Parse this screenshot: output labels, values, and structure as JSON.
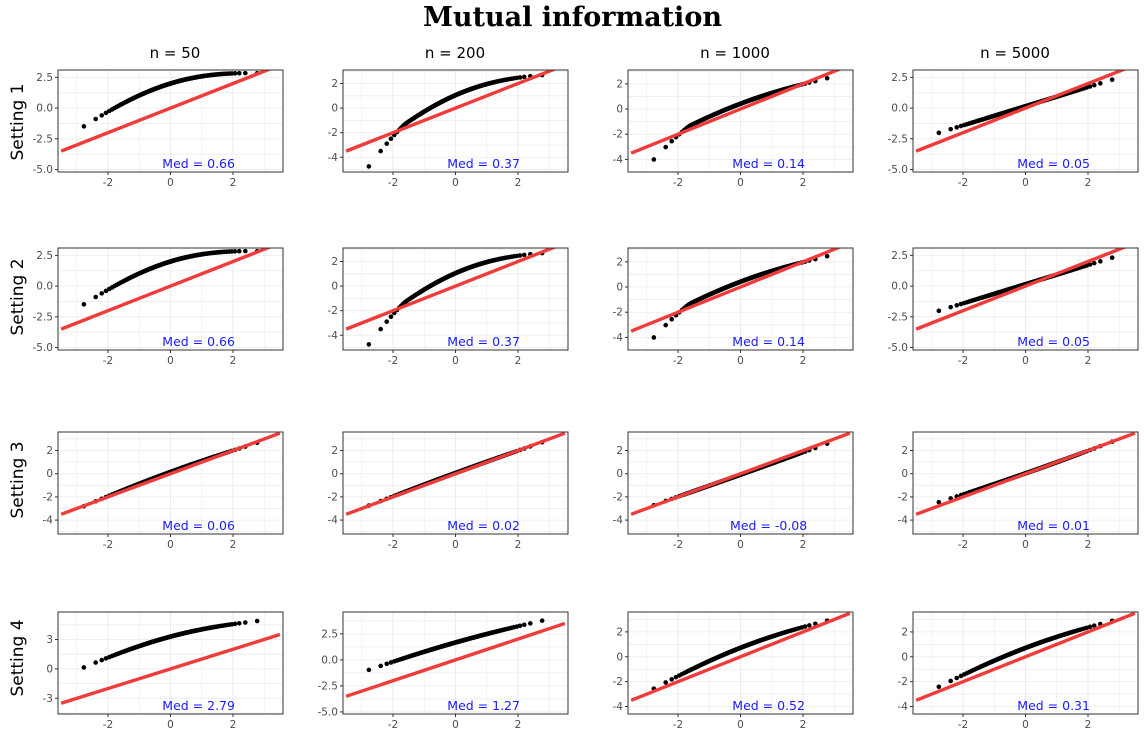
{
  "title": "Mutual information",
  "columns": [
    "n = 50",
    "n = 200",
    "n = 1000",
    "n = 5000"
  ],
  "rows": [
    "Setting 1",
    "Setting 2",
    "Setting 3",
    "Setting 4"
  ],
  "colors": {
    "points": "#000000",
    "reference_line": "#f03b3b",
    "annotation": "#1a1aff",
    "grid": "#ebebeb",
    "border": "#333333"
  },
  "chart_data": [
    {
      "type": "scatter",
      "row": 0,
      "col": 0,
      "annotation": "Med = 0.66",
      "xlim": [
        -3.6,
        3.6
      ],
      "ylim": [
        -5.2,
        3.1
      ],
      "xticks": [
        -2,
        0,
        2
      ],
      "yticks": [
        -5.0,
        -2.5,
        0.0,
        2.5
      ],
      "ytick_labels": [
        "-5.0",
        "-2.5",
        "0.0",
        "2.5"
      ],
      "line": [
        -3.5,
        3.5
      ],
      "qq_min": -2.5,
      "qq_max": 2.8,
      "qq_mid": 0.6,
      "qq_curve": 0.7
    },
    {
      "type": "scatter",
      "row": 0,
      "col": 1,
      "annotation": "Med = 0.37",
      "xlim": [
        -3.6,
        3.6
      ],
      "ylim": [
        -5.2,
        3.1
      ],
      "xticks": [
        -2,
        0,
        2
      ],
      "yticks": [
        -4,
        -2,
        0,
        2
      ],
      "ytick_labels": [
        "-4",
        "-2",
        "0",
        "2"
      ],
      "line": [
        -3.5,
        3.5
      ],
      "qq_min": -4.8,
      "qq_max": 2.8,
      "qq_mid": 0.35,
      "qq_curve": 0.35,
      "qq_dip": true
    },
    {
      "type": "scatter",
      "row": 0,
      "col": 2,
      "annotation": "Med = 0.14",
      "xlim": [
        -3.6,
        3.6
      ],
      "ylim": [
        -5.0,
        3.1
      ],
      "xticks": [
        -2,
        0,
        2
      ],
      "yticks": [
        -4,
        -2,
        0,
        2
      ],
      "ytick_labels": [
        "-4",
        "-2",
        "0",
        "2"
      ],
      "line": [
        -3.5,
        3.5
      ],
      "qq_min": -3.6,
      "qq_max": 2.8,
      "qq_mid": 0.12,
      "qq_curve": 0.15,
      "qq_dip": true
    },
    {
      "type": "scatter",
      "row": 0,
      "col": 3,
      "annotation": "Med = 0.05",
      "xlim": [
        -3.6,
        3.6
      ],
      "ylim": [
        -5.2,
        3.1
      ],
      "xticks": [
        -2,
        0,
        2
      ],
      "yticks": [
        -5.0,
        -2.5,
        0.0,
        2.5
      ],
      "ytick_labels": [
        "-5.0",
        "-2.5",
        "0.0",
        "2.5"
      ],
      "line": [
        -3.5,
        3.5
      ],
      "qq_min": -2.5,
      "qq_max": 2.8,
      "qq_mid": 0.05,
      "qq_curve": 0.05
    },
    {
      "type": "scatter",
      "row": 1,
      "col": 0,
      "annotation": "Med = 0.66",
      "xlim": [
        -3.6,
        3.6
      ],
      "ylim": [
        -5.2,
        3.1
      ],
      "xticks": [
        -2,
        0,
        2
      ],
      "yticks": [
        -5.0,
        -2.5,
        0.0,
        2.5
      ],
      "ytick_labels": [
        "-5.0",
        "-2.5",
        "0.0",
        "2.5"
      ],
      "line": [
        -3.5,
        3.5
      ],
      "qq_min": -2.5,
      "qq_max": 2.8,
      "qq_mid": 0.6,
      "qq_curve": 0.7
    },
    {
      "type": "scatter",
      "row": 1,
      "col": 1,
      "annotation": "Med = 0.37",
      "xlim": [
        -3.6,
        3.6
      ],
      "ylim": [
        -5.2,
        3.1
      ],
      "xticks": [
        -2,
        0,
        2
      ],
      "yticks": [
        -4,
        -2,
        0,
        2
      ],
      "ytick_labels": [
        "-4",
        "-2",
        "0",
        "2"
      ],
      "line": [
        -3.5,
        3.5
      ],
      "qq_min": -4.8,
      "qq_max": 2.8,
      "qq_mid": 0.35,
      "qq_curve": 0.35,
      "qq_dip": true
    },
    {
      "type": "scatter",
      "row": 1,
      "col": 2,
      "annotation": "Med = 0.14",
      "xlim": [
        -3.6,
        3.6
      ],
      "ylim": [
        -5.0,
        3.1
      ],
      "xticks": [
        -2,
        0,
        2
      ],
      "yticks": [
        -4,
        -2,
        0,
        2
      ],
      "ytick_labels": [
        "-4",
        "-2",
        "0",
        "2"
      ],
      "line": [
        -3.5,
        3.5
      ],
      "qq_min": -3.6,
      "qq_max": 2.8,
      "qq_mid": 0.12,
      "qq_curve": 0.15,
      "qq_dip": true
    },
    {
      "type": "scatter",
      "row": 1,
      "col": 3,
      "annotation": "Med = 0.05",
      "xlim": [
        -3.6,
        3.6
      ],
      "ylim": [
        -5.2,
        3.1
      ],
      "xticks": [
        -2,
        0,
        2
      ],
      "yticks": [
        -5.0,
        -2.5,
        0.0,
        2.5
      ],
      "ytick_labels": [
        "-5.0",
        "-2.5",
        "0.0",
        "2.5"
      ],
      "line": [
        -3.5,
        3.5
      ],
      "qq_min": -2.5,
      "qq_max": 2.8,
      "qq_mid": 0.05,
      "qq_curve": 0.05
    },
    {
      "type": "scatter",
      "row": 2,
      "col": 0,
      "annotation": "Med = 0.06",
      "xlim": [
        -3.6,
        3.6
      ],
      "ylim": [
        -5.2,
        3.6
      ],
      "xticks": [
        -2,
        0,
        2
      ],
      "yticks": [
        -4,
        -2,
        0,
        2
      ],
      "ytick_labels": [
        "-4",
        "-2",
        "0",
        "2"
      ],
      "line": [
        -3.5,
        3.5
      ],
      "qq_min": -3.5,
      "qq_max": 3.2,
      "qq_mid": 0.05,
      "qq_curve": 0.05
    },
    {
      "type": "scatter",
      "row": 2,
      "col": 1,
      "annotation": "Med = 0.02",
      "xlim": [
        -3.6,
        3.6
      ],
      "ylim": [
        -5.2,
        3.6
      ],
      "xticks": [
        -2,
        0,
        2
      ],
      "yticks": [
        -4,
        -2,
        0,
        2
      ],
      "ytick_labels": [
        "-4",
        "-2",
        "0",
        "2"
      ],
      "line": [
        -3.5,
        3.5
      ],
      "qq_min": -3.4,
      "qq_max": 3.3,
      "qq_mid": 0.02,
      "qq_curve": 0.02
    },
    {
      "type": "scatter",
      "row": 2,
      "col": 2,
      "annotation": "Med = -0.08",
      "xlim": [
        -3.6,
        3.6
      ],
      "ylim": [
        -5.2,
        3.6
      ],
      "xticks": [
        -2,
        0,
        2
      ],
      "yticks": [
        -4,
        -2,
        0,
        2
      ],
      "ytick_labels": [
        "-4",
        "-2",
        "0",
        "2"
      ],
      "line": [
        -3.5,
        3.5
      ],
      "qq_min": -3.3,
      "qq_max": 3.2,
      "qq_mid": -0.08,
      "qq_curve": 0.0
    },
    {
      "type": "scatter",
      "row": 2,
      "col": 3,
      "annotation": "Med = 0.01",
      "xlim": [
        -3.6,
        3.6
      ],
      "ylim": [
        -5.2,
        3.6
      ],
      "xticks": [
        -2,
        0,
        2
      ],
      "yticks": [
        -4,
        -2,
        0,
        2
      ],
      "ytick_labels": [
        "-4",
        "-2",
        "0",
        "2"
      ],
      "line": [
        -3.5,
        3.5
      ],
      "qq_min": -3.0,
      "qq_max": 3.4,
      "qq_mid": 0.01,
      "qq_curve": 0.01
    },
    {
      "type": "scatter",
      "row": 3,
      "col": 0,
      "annotation": "Med = 2.79",
      "xlim": [
        -3.6,
        3.6
      ],
      "ylim": [
        -4.6,
        5.8
      ],
      "xticks": [
        -2,
        0,
        2
      ],
      "yticks": [
        -3,
        0,
        3
      ],
      "ytick_labels": [
        "-3",
        "0",
        "3"
      ],
      "line": [
        -3.5,
        3.5
      ],
      "qq_min": -0.7,
      "qq_max": 5.1,
      "qq_mid": 2.79,
      "qq_curve": 0.25
    },
    {
      "type": "scatter",
      "row": 3,
      "col": 1,
      "annotation": "Med = 1.27",
      "xlim": [
        -3.6,
        3.6
      ],
      "ylim": [
        -5.2,
        4.6
      ],
      "xticks": [
        -2,
        0,
        2
      ],
      "yticks": [
        -5.0,
        -2.5,
        0.0,
        2.5
      ],
      "ytick_labels": [
        "-5.0",
        "-2.5",
        "0.0",
        "2.5"
      ],
      "line": [
        -3.5,
        3.5
      ],
      "qq_min": -1.6,
      "qq_max": 4.2,
      "qq_mid": 1.27,
      "qq_curve": 0.2
    },
    {
      "type": "scatter",
      "row": 3,
      "col": 2,
      "annotation": "Med = 0.52",
      "xlim": [
        -3.6,
        3.6
      ],
      "ylim": [
        -4.6,
        3.6
      ],
      "xticks": [
        -2,
        0,
        2
      ],
      "yticks": [
        -4,
        -2,
        0,
        2
      ],
      "ytick_labels": [
        "-4",
        "-2",
        "0",
        "2"
      ],
      "line": [
        -3.5,
        3.5
      ],
      "qq_min": -3.4,
      "qq_max": 3.3,
      "qq_mid": 0.52,
      "qq_curve": 0.1
    },
    {
      "type": "scatter",
      "row": 3,
      "col": 3,
      "annotation": "Med = 0.31",
      "xlim": [
        -3.6,
        3.6
      ],
      "ylim": [
        -4.6,
        3.6
      ],
      "xticks": [
        -2,
        0,
        2
      ],
      "yticks": [
        -4,
        -2,
        0,
        2
      ],
      "ytick_labels": [
        "-4",
        "-2",
        "0",
        "2"
      ],
      "line": [
        -3.5,
        3.5
      ],
      "qq_min": -3.2,
      "qq_max": 3.3,
      "qq_mid": 0.31,
      "qq_curve": 0.2
    }
  ]
}
